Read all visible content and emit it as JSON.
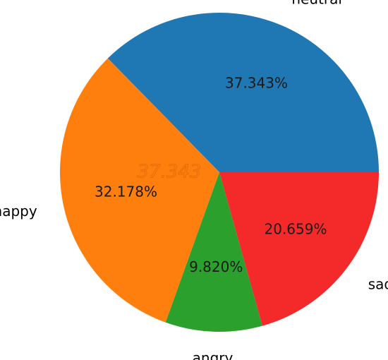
{
  "chart_data": {
    "type": "pie",
    "title": "",
    "start_angle_deg": 0,
    "direction": "counterclockwise",
    "slices": [
      {
        "label": "neutral",
        "value": 37.343,
        "pct_text": "37.343%",
        "color": "#1f77b4"
      },
      {
        "label": "happy",
        "value": 32.178,
        "pct_text": "32.178%",
        "color": "#ff7f0e"
      },
      {
        "label": "angry",
        "value": 9.82,
        "pct_text": "9.820%",
        "color": "#2ca02c"
      },
      {
        "label": "sad",
        "value": 20.659,
        "pct_text": "20.659%",
        "color": "#f42a2a"
      }
    ],
    "artifact_text": "37.343"
  }
}
